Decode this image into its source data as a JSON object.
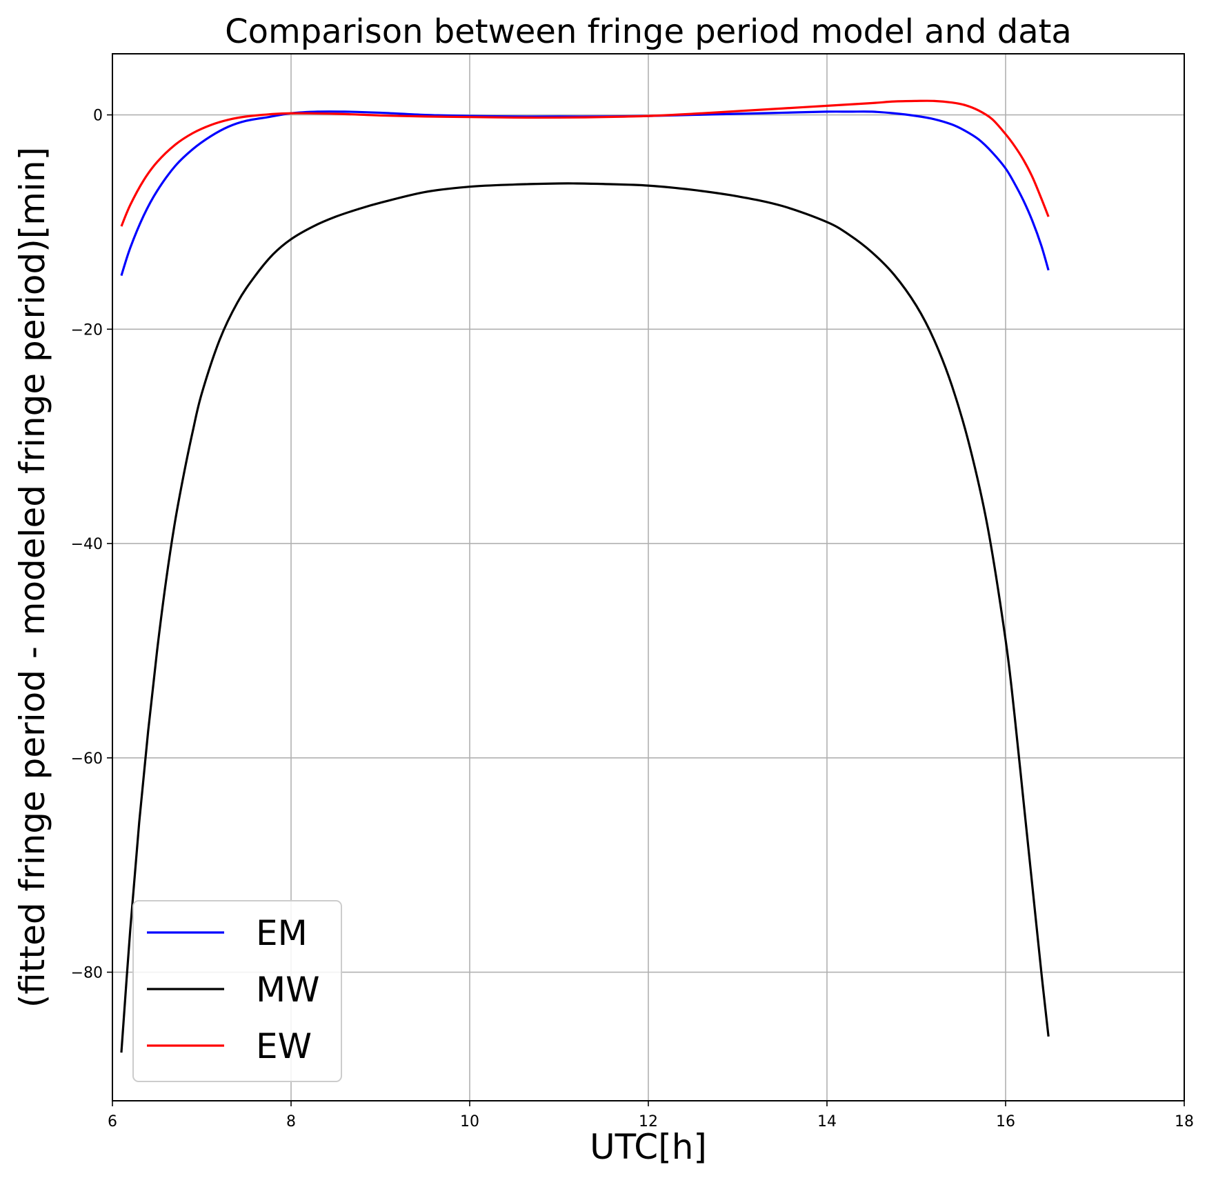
{
  "chart_data": {
    "type": "line",
    "title": "Comparison between fringe period model and data",
    "xlabel": "UTC[h]",
    "ylabel": "(fitted fringe period - modeled fringe period)[min]",
    "xlim": [
      6,
      18
    ],
    "ylim": [
      -92,
      5.7
    ],
    "xticks": [
      6,
      8,
      10,
      12,
      14,
      16,
      18
    ],
    "xtick_labels": [
      "6",
      "8",
      "10",
      "12",
      "14",
      "16",
      "18"
    ],
    "yticks": [
      0,
      -20,
      -40,
      -60,
      -80
    ],
    "ytick_labels": [
      "0",
      "−20",
      "−40",
      "−60",
      "−80"
    ],
    "grid": true,
    "legend_position": "lower-left",
    "series": [
      {
        "name": "EM",
        "color": "#0000ff",
        "x": [
          6.1,
          6.2,
          6.35,
          6.5,
          6.7,
          6.9,
          7.1,
          7.3,
          7.5,
          7.75,
          8.0,
          8.3,
          8.6,
          9.0,
          9.5,
          10.0,
          10.5,
          11.0,
          11.5,
          12.0,
          12.5,
          13.0,
          13.5,
          14.0,
          14.25,
          14.5,
          14.75,
          15.0,
          15.2,
          15.4,
          15.55,
          15.7,
          15.85,
          16.0,
          16.1,
          16.2,
          16.3,
          16.4,
          16.48
        ],
        "y": [
          -15.0,
          -12.4,
          -9.4,
          -7.1,
          -4.8,
          -3.2,
          -2.0,
          -1.1,
          -0.55,
          -0.2,
          0.15,
          0.3,
          0.3,
          0.2,
          0.0,
          -0.1,
          -0.15,
          -0.15,
          -0.15,
          -0.1,
          0.0,
          0.1,
          0.2,
          0.3,
          0.3,
          0.3,
          0.15,
          -0.1,
          -0.4,
          -0.9,
          -1.5,
          -2.3,
          -3.5,
          -5.0,
          -6.4,
          -8.0,
          -9.9,
          -12.2,
          -14.5
        ]
      },
      {
        "name": "MW",
        "color": "#000000",
        "x": [
          6.1,
          6.2,
          6.3,
          6.4,
          6.5,
          6.6,
          6.7,
          6.8,
          6.9,
          7.0,
          7.2,
          7.4,
          7.6,
          7.8,
          8.0,
          8.25,
          8.5,
          8.75,
          9.0,
          9.5,
          10.0,
          10.5,
          11.0,
          11.2,
          11.5,
          12.0,
          12.5,
          13.0,
          13.5,
          14.0,
          14.25,
          14.5,
          14.75,
          15.0,
          15.2,
          15.4,
          15.6,
          15.8,
          16.0,
          16.1,
          16.2,
          16.3,
          16.4,
          16.48
        ],
        "y": [
          -87.5,
          -76.0,
          -66.0,
          -57.5,
          -50.0,
          -43.5,
          -38.0,
          -33.5,
          -29.5,
          -26.0,
          -21.0,
          -17.5,
          -15.0,
          -13.0,
          -11.6,
          -10.4,
          -9.5,
          -8.8,
          -8.2,
          -7.2,
          -6.7,
          -6.5,
          -6.4,
          -6.4,
          -6.45,
          -6.6,
          -7.0,
          -7.6,
          -8.5,
          -10.0,
          -11.2,
          -12.8,
          -14.9,
          -17.8,
          -21.0,
          -25.3,
          -31.0,
          -38.5,
          -49.0,
          -56.0,
          -64.0,
          -72.0,
          -80.0,
          -86.0
        ]
      },
      {
        "name": "EW",
        "color": "#ff0000",
        "x": [
          6.1,
          6.2,
          6.35,
          6.5,
          6.7,
          6.9,
          7.1,
          7.3,
          7.5,
          7.75,
          8.0,
          8.5,
          9.0,
          9.5,
          10.0,
          10.5,
          11.0,
          11.5,
          12.0,
          12.5,
          13.0,
          13.5,
          14.0,
          14.5,
          14.75,
          15.0,
          15.2,
          15.4,
          15.55,
          15.7,
          15.85,
          16.0,
          16.1,
          16.2,
          16.3,
          16.4,
          16.48
        ],
        "y": [
          -10.4,
          -8.4,
          -6.1,
          -4.4,
          -2.8,
          -1.7,
          -0.95,
          -0.45,
          -0.15,
          0.05,
          0.15,
          0.1,
          -0.05,
          -0.15,
          -0.2,
          -0.25,
          -0.25,
          -0.2,
          -0.1,
          0.1,
          0.35,
          0.6,
          0.85,
          1.1,
          1.25,
          1.3,
          1.3,
          1.15,
          0.9,
          0.4,
          -0.4,
          -1.8,
          -2.9,
          -4.2,
          -5.8,
          -7.8,
          -9.5
        ]
      }
    ]
  }
}
